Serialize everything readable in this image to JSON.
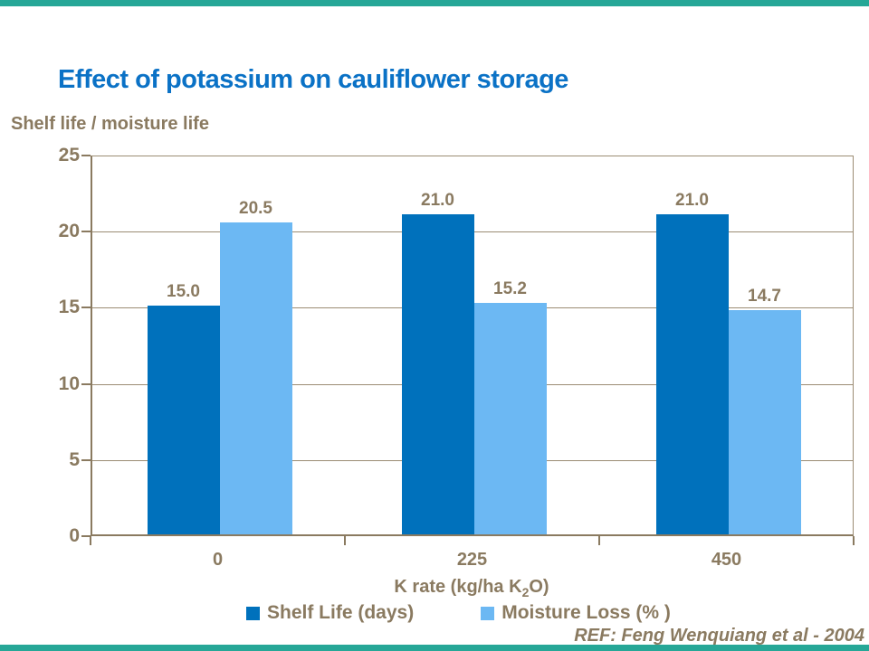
{
  "slide": {
    "title": "Effect of potassium on cauliflower storage",
    "reference": "REF: Feng Wenquiang et al - 2004"
  },
  "colors": {
    "title_blue": "#0b72c6",
    "axis_text": "#8a7a60",
    "gridline": "#9b8c73",
    "accent_teal": "#26a797"
  },
  "chart_data": {
    "type": "bar",
    "title": "Effect of potassium on cauliflower storage",
    "ylabel": "Shelf life / moisture life",
    "xlabel": "K rate (kg/ha K2O)",
    "xlabel_parts": {
      "pre": "K rate (kg/ha K",
      "sub": "2",
      "post": "O)"
    },
    "categories": [
      "0",
      "225",
      "450"
    ],
    "series": [
      {
        "name": "Shelf Life (days)",
        "color": "#0071bc",
        "values": [
          15.0,
          21.0,
          21.0
        ],
        "labels": [
          "15.0",
          "21.0",
          "21.0"
        ]
      },
      {
        "name": "Moisture Loss (% )",
        "color": "#6cb8f3",
        "values": [
          20.5,
          15.2,
          14.7
        ],
        "labels": [
          "20.5",
          "15.2",
          "14.7"
        ]
      }
    ],
    "ylim": [
      0,
      25
    ],
    "yticks": [
      0,
      5,
      10,
      15,
      20,
      25
    ],
    "grid": true,
    "legend_position": "bottom"
  }
}
